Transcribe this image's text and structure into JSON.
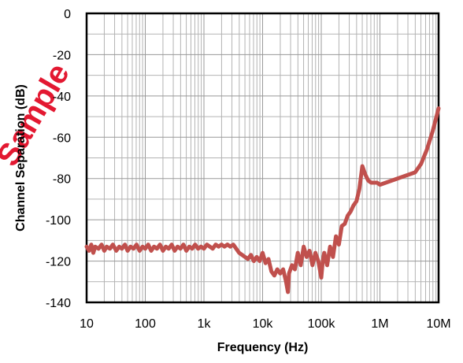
{
  "watermark": {
    "text": "Sample",
    "color": "#e0001b"
  },
  "chart_data": {
    "type": "line",
    "xlabel": "Frequency (Hz)",
    "ylabel": "Channel Separation (dB)",
    "xscale": "log",
    "xlim": [
      10,
      10000000
    ],
    "ylim": [
      -140,
      0
    ],
    "grid": true,
    "legend": "none",
    "x_ticks": [
      {
        "value": 10,
        "label": "10"
      },
      {
        "value": 100,
        "label": "100"
      },
      {
        "value": 1000,
        "label": "1k"
      },
      {
        "value": 10000,
        "label": "10k"
      },
      {
        "value": 100000,
        "label": "100k"
      },
      {
        "value": 1000000,
        "label": "1M"
      },
      {
        "value": 10000000,
        "label": "10M"
      }
    ],
    "y_ticks": [
      {
        "value": 0,
        "label": "0"
      },
      {
        "value": -20,
        "label": "-20"
      },
      {
        "value": -40,
        "label": "-40"
      },
      {
        "value": -60,
        "label": "-60"
      },
      {
        "value": -80,
        "label": "-80"
      },
      {
        "value": -100,
        "label": "-100"
      },
      {
        "value": -120,
        "label": "-120"
      },
      {
        "value": -140,
        "label": "-140"
      }
    ],
    "series": [
      {
        "color": "#c0504d",
        "points": [
          [
            10,
            -113
          ],
          [
            11,
            -115
          ],
          [
            12,
            -112
          ],
          [
            13,
            -116
          ],
          [
            14,
            -113
          ],
          [
            16,
            -114
          ],
          [
            18,
            -112
          ],
          [
            20,
            -115
          ],
          [
            22,
            -113
          ],
          [
            25,
            -114
          ],
          [
            28,
            -112
          ],
          [
            32,
            -115
          ],
          [
            36,
            -113
          ],
          [
            40,
            -114
          ],
          [
            45,
            -112
          ],
          [
            50,
            -115
          ],
          [
            56,
            -113
          ],
          [
            63,
            -114
          ],
          [
            71,
            -112
          ],
          [
            80,
            -115
          ],
          [
            90,
            -113
          ],
          [
            100,
            -114
          ],
          [
            112,
            -112
          ],
          [
            126,
            -115
          ],
          [
            141,
            -113
          ],
          [
            158,
            -114
          ],
          [
            178,
            -112
          ],
          [
            200,
            -115
          ],
          [
            224,
            -113
          ],
          [
            251,
            -114
          ],
          [
            282,
            -112
          ],
          [
            316,
            -115
          ],
          [
            355,
            -113
          ],
          [
            398,
            -114
          ],
          [
            447,
            -112
          ],
          [
            501,
            -115
          ],
          [
            562,
            -113
          ],
          [
            631,
            -114
          ],
          [
            708,
            -112
          ],
          [
            794,
            -114
          ],
          [
            891,
            -113
          ],
          [
            1000,
            -114
          ],
          [
            1122,
            -112
          ],
          [
            1259,
            -113
          ],
          [
            1413,
            -114
          ],
          [
            1585,
            -112
          ],
          [
            1778,
            -113
          ],
          [
            2000,
            -112
          ],
          [
            2239,
            -113
          ],
          [
            2512,
            -112
          ],
          [
            2818,
            -113
          ],
          [
            3162,
            -112
          ],
          [
            3548,
            -114
          ],
          [
            3981,
            -116
          ],
          [
            4467,
            -117
          ],
          [
            5012,
            -118
          ],
          [
            5623,
            -119
          ],
          [
            6310,
            -117
          ],
          [
            7079,
            -120
          ],
          [
            7943,
            -118
          ],
          [
            8913,
            -120
          ],
          [
            10000,
            -116
          ],
          [
            11220,
            -121
          ],
          [
            12589,
            -119
          ],
          [
            14125,
            -125
          ],
          [
            15849,
            -127
          ],
          [
            17783,
            -124
          ],
          [
            19953,
            -126
          ],
          [
            22387,
            -124
          ],
          [
            25119,
            -130
          ],
          [
            27000,
            -135
          ],
          [
            28184,
            -126
          ],
          [
            31623,
            -122
          ],
          [
            35481,
            -124
          ],
          [
            39811,
            -116
          ],
          [
            44668,
            -122
          ],
          [
            50119,
            -113
          ],
          [
            56234,
            -118
          ],
          [
            63096,
            -115
          ],
          [
            70795,
            -122
          ],
          [
            79433,
            -116
          ],
          [
            89125,
            -120
          ],
          [
            100000,
            -128
          ],
          [
            106000,
            -120
          ],
          [
            112202,
            -116
          ],
          [
            125893,
            -122
          ],
          [
            141254,
            -113
          ],
          [
            158489,
            -118
          ],
          [
            177828,
            -108
          ],
          [
            199526,
            -112
          ],
          [
            223872,
            -103
          ],
          [
            251189,
            -102
          ],
          [
            281838,
            -98
          ],
          [
            316228,
            -96
          ],
          [
            354813,
            -93
          ],
          [
            398107,
            -91
          ],
          [
            446684,
            -85
          ],
          [
            501187,
            -74
          ],
          [
            562341,
            -78
          ],
          [
            630957,
            -81
          ],
          [
            707946,
            -82
          ],
          [
            794328,
            -82
          ],
          [
            891251,
            -82
          ],
          [
            1000000,
            -83
          ],
          [
            1258925,
            -82
          ],
          [
            1584893,
            -81
          ],
          [
            1995262,
            -80
          ],
          [
            2511886,
            -79
          ],
          [
            3162278,
            -78
          ],
          [
            3981072,
            -77
          ],
          [
            5011872,
            -73
          ],
          [
            6309573,
            -66
          ],
          [
            7943282,
            -57
          ],
          [
            10000000,
            -46
          ]
        ]
      }
    ]
  }
}
